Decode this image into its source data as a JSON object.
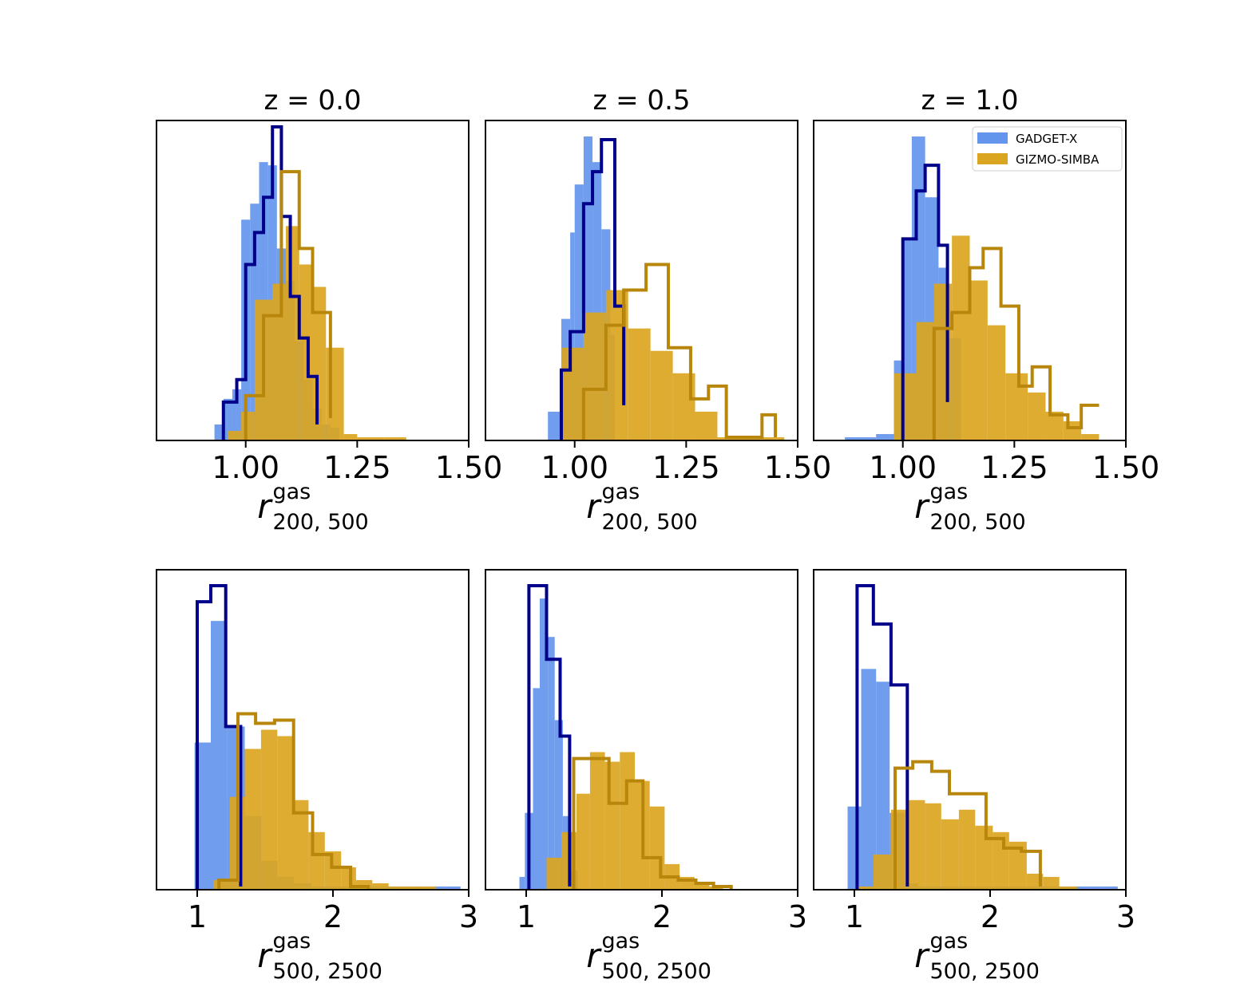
{
  "figure": {
    "legend": {
      "gadget_label": "GADGET-X",
      "gizmo_label": "GIZMO-SIMBA",
      "location": "upper right (panel z = 1.0, top row)"
    },
    "colors": {
      "gadget_fill": "#6495ed",
      "gadget_step": "#00008b",
      "gizmo_fill": "#daa520",
      "gizmo_step": "#b8860b"
    },
    "titles": [
      "z = 0.0",
      "z = 0.5",
      "z = 1.0"
    ]
  },
  "chart_data": [
    {
      "type": "histogram",
      "panel": "top-left",
      "title": "z = 0.0",
      "xlabel": "r^gas_200,500",
      "xlabel_main": "r",
      "xlabel_sup": "gas",
      "xlabel_sub": "200, 500",
      "xlim": [
        0.8,
        1.5
      ],
      "ylim": [
        0,
        100
      ],
      "xticks": [
        1.0,
        1.25,
        1.5
      ],
      "xtick_labels": [
        "1.00",
        "1.25",
        "1.50"
      ],
      "gadget_fill": {
        "edges": [
          0.93,
          0.95,
          0.97,
          0.99,
          1.01,
          1.03,
          1.05,
          1.07,
          1.09,
          1.11,
          1.13,
          1.15,
          1.17,
          1.19,
          1.21
        ],
        "heights": [
          5,
          13,
          16,
          69,
          74,
          87,
          86,
          60,
          50,
          31,
          19,
          10,
          5,
          4
        ]
      },
      "gadget_step": {
        "edges": [
          0.95,
          0.98,
          1.0,
          1.02,
          1.04,
          1.06,
          1.08,
          1.1,
          1.12,
          1.14,
          1.16
        ],
        "heights": [
          12,
          19,
          55,
          65,
          76,
          98,
          70,
          45,
          32,
          20,
          5
        ]
      },
      "gizmo_fill": {
        "edges": [
          0.96,
          0.99,
          1.02,
          1.06,
          1.09,
          1.12,
          1.15,
          1.18,
          1.22,
          1.25,
          1.31,
          1.36
        ],
        "heights": [
          3,
          9,
          44,
          49,
          67,
          55,
          48,
          29,
          2,
          1,
          1
        ]
      },
      "gizmo_step": {
        "edges": [
          1.0,
          1.04,
          1.08,
          1.12,
          1.15,
          1.19
        ],
        "heights": [
          14,
          39,
          84,
          60,
          40,
          7
        ]
      }
    },
    {
      "type": "histogram",
      "panel": "top-middle",
      "title": "z = 0.5",
      "xlabel": "r^gas_200,500",
      "xlabel_main": "r",
      "xlabel_sup": "gas",
      "xlabel_sub": "200, 500",
      "xlim": [
        0.8,
        1.5
      ],
      "ylim": [
        0,
        100
      ],
      "xticks": [
        1.0,
        1.25,
        1.5
      ],
      "xtick_labels": [
        "1.00",
        "1.25",
        "1.50"
      ],
      "gadget_fill": {
        "edges": [
          0.94,
          0.97,
          0.99,
          1.0,
          1.02,
          1.04,
          1.06,
          1.08,
          1.09
        ],
        "heights": [
          9,
          38,
          65,
          80,
          95,
          87,
          66,
          33
        ]
      },
      "gadget_step": {
        "edges": [
          0.97,
          0.99,
          1.02,
          1.04,
          1.06,
          1.09,
          1.11
        ],
        "heights": [
          22,
          34,
          74,
          84,
          94,
          42,
          11
        ]
      },
      "gizmo_fill": {
        "edges": [
          0.97,
          1.02,
          1.07,
          1.12,
          1.17,
          1.22,
          1.27,
          1.32,
          1.37,
          1.42,
          1.47
        ],
        "heights": [
          29,
          40,
          47,
          35,
          28,
          21,
          9,
          1,
          1,
          1
        ]
      },
      "gizmo_step": {
        "edges": [
          1.02,
          1.07,
          1.11,
          1.16,
          1.21,
          1.26,
          1.3,
          1.34,
          1.38,
          1.42,
          1.45
        ],
        "heights": [
          16,
          36,
          47,
          55,
          29,
          13,
          17,
          1,
          1,
          8,
          1
        ]
      }
    },
    {
      "type": "histogram",
      "panel": "top-right",
      "title": "z = 1.0",
      "xlabel": "r^gas_200,500",
      "xlabel_main": "r",
      "xlabel_sup": "gas",
      "xlabel_sub": "200, 500",
      "xlim": [
        0.8,
        1.5
      ],
      "ylim": [
        0,
        100
      ],
      "xticks": [
        1.0,
        1.25,
        1.5
      ],
      "xtick_labels": [
        "1.00",
        "1.25",
        "1.50"
      ],
      "gadget_fill": {
        "edges": [
          0.87,
          0.94,
          0.98,
          1.0,
          1.02,
          1.05,
          1.08,
          1.1,
          1.13
        ],
        "heights": [
          1,
          2,
          25,
          63,
          95,
          76,
          54,
          32
        ]
      },
      "gadget_step": {
        "edges": [
          1.0,
          1.03,
          1.05,
          1.08,
          1.1
        ],
        "heights": [
          63,
          78,
          86,
          61,
          12
        ]
      },
      "gizmo_fill": {
        "edges": [
          0.98,
          1.03,
          1.07,
          1.11,
          1.15,
          1.19,
          1.23,
          1.28,
          1.32,
          1.36,
          1.4,
          1.44
        ],
        "heights": [
          21,
          37,
          49,
          64,
          50,
          36,
          21,
          15,
          9,
          6,
          2
        ]
      },
      "gizmo_step": {
        "edges": [
          1.07,
          1.11,
          1.15,
          1.18,
          1.22,
          1.26,
          1.29,
          1.33,
          1.37,
          1.4,
          1.44
        ],
        "heights": [
          35,
          40,
          54,
          60,
          42,
          17,
          23,
          8,
          4,
          11,
          11
        ]
      }
    },
    {
      "type": "histogram",
      "panel": "bottom-left",
      "title": "",
      "xlabel": "r^gas_500,2500",
      "xlabel_main": "r",
      "xlabel_sup": "gas",
      "xlabel_sub": "500, 2500",
      "xlim": [
        0.7,
        3.0
      ],
      "ylim": [
        0,
        100
      ],
      "xticks": [
        1,
        2,
        3
      ],
      "xtick_labels": [
        "1",
        "2",
        "3"
      ],
      "gadget_fill": {
        "edges": [
          0.98,
          1.1,
          1.22,
          1.35,
          1.47,
          1.59,
          1.71,
          1.84,
          1.96,
          2.08,
          2.2,
          2.33,
          2.45,
          2.57,
          2.69,
          2.82,
          2.94
        ],
        "heights": [
          46,
          84,
          51,
          23,
          9,
          4,
          2,
          1,
          1,
          1,
          1,
          1,
          1,
          1,
          1,
          1
        ]
      },
      "gadget_step": {
        "edges": [
          1.0,
          1.1,
          1.21,
          1.32
        ],
        "heights": [
          90,
          95,
          51,
          1
        ]
      },
      "gizmo_fill": {
        "edges": [
          1.12,
          1.24,
          1.35,
          1.47,
          1.59,
          1.7,
          1.82,
          1.94,
          2.06,
          2.17,
          2.29,
          2.41,
          2.52,
          2.64,
          2.76
        ],
        "heights": [
          3,
          29,
          44,
          50,
          48,
          28,
          18,
          12,
          7,
          3,
          2,
          1,
          1,
          1
        ]
      },
      "gizmo_step": {
        "edges": [
          1.16,
          1.3,
          1.43,
          1.57,
          1.71,
          1.85,
          1.99,
          2.13,
          2.26
        ],
        "heights": [
          3,
          55,
          52,
          53,
          24,
          11,
          7,
          1
        ]
      }
    },
    {
      "type": "histogram",
      "panel": "bottom-middle",
      "title": "",
      "xlabel": "r^gas_500,2500",
      "xlabel_main": "r",
      "xlabel_sup": "gas",
      "xlabel_sub": "500, 2500",
      "xlim": [
        0.7,
        3.0
      ],
      "ylim": [
        0,
        100
      ],
      "xticks": [
        1,
        2,
        3
      ],
      "xtick_labels": [
        "1",
        "2",
        "3"
      ],
      "gadget_fill": {
        "edges": [
          0.95,
          0.99,
          1.05,
          1.1,
          1.16,
          1.21,
          1.27,
          1.33,
          1.38
        ],
        "heights": [
          4,
          24,
          63,
          91,
          79,
          53,
          23,
          6
        ]
      },
      "gadget_step": {
        "edges": [
          1.02,
          1.15,
          1.25,
          1.32
        ],
        "heights": [
          95,
          72,
          48,
          1
        ]
      },
      "gizmo_fill": {
        "edges": [
          1.15,
          1.26,
          1.37,
          1.47,
          1.58,
          1.69,
          1.8,
          1.91,
          2.02,
          2.13,
          2.24,
          2.35,
          2.45
        ],
        "heights": [
          10,
          18,
          30,
          43,
          40,
          43,
          34,
          26,
          8,
          4,
          2,
          1
        ]
      },
      "gizmo_step": {
        "edges": [
          1.35,
          1.48,
          1.61,
          1.74,
          1.86,
          1.99,
          2.12,
          2.25,
          2.38,
          2.51
        ],
        "heights": [
          41,
          41,
          27,
          34,
          10,
          4,
          3,
          2,
          1
        ]
      }
    },
    {
      "type": "histogram",
      "panel": "bottom-right",
      "title": "",
      "xlabel": "r^gas_500,2500",
      "xlabel_main": "r",
      "xlabel_sup": "gas",
      "xlabel_sub": "500, 2500",
      "xlim": [
        0.7,
        3.0
      ],
      "ylim": [
        0,
        100
      ],
      "xticks": [
        1,
        2,
        3
      ],
      "xtick_labels": [
        "1",
        "2",
        "3"
      ],
      "gadget_fill": {
        "edges": [
          0.95,
          1.05,
          1.16,
          1.26,
          1.37,
          1.47,
          1.58,
          1.68,
          1.79,
          1.89,
          2.0,
          2.1,
          2.21,
          2.31,
          2.42,
          2.52,
          2.62,
          2.73,
          2.83,
          2.94
        ],
        "heights": [
          26,
          69,
          65,
          24,
          2,
          1,
          1,
          1,
          1,
          1,
          1,
          1,
          1,
          1,
          1,
          1,
          1,
          1,
          1
        ]
      },
      "gadget_step": {
        "edges": [
          1.02,
          1.14,
          1.27,
          1.39
        ],
        "heights": [
          95,
          83,
          64,
          1
        ]
      },
      "gizmo_fill": {
        "edges": [
          1.02,
          1.14,
          1.27,
          1.39,
          1.52,
          1.64,
          1.77,
          1.89,
          2.02,
          2.14,
          2.27,
          2.39,
          2.51,
          2.64
        ],
        "heights": [
          1,
          11,
          25,
          28,
          27,
          22,
          25,
          20,
          18,
          15,
          5,
          4,
          1
        ]
      },
      "gizmo_step": {
        "edges": [
          1.3,
          1.43,
          1.57,
          1.7,
          1.83,
          1.97,
          2.1,
          2.23,
          2.37
        ],
        "heights": [
          38,
          40,
          37,
          30,
          30,
          16,
          13,
          12,
          1
        ]
      }
    }
  ]
}
